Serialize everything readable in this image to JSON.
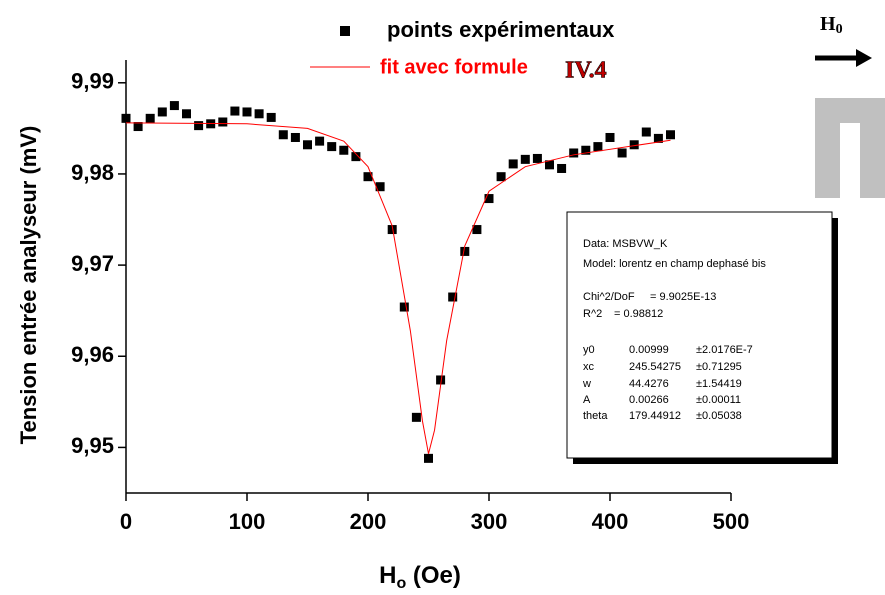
{
  "chart_data": {
    "type": "scatter",
    "ylabel": "Tension entrée analyseur (mV)",
    "xlabel": [
      "H",
      "o",
      " (Oe)"
    ],
    "xlim": [
      0,
      500
    ],
    "xticks": [
      0,
      100,
      200,
      300,
      400,
      500
    ],
    "ylim": [
      9.945,
      9.9925
    ],
    "yticks": [
      {
        "value": 9.95,
        "label": "9,95"
      },
      {
        "value": 9.96,
        "label": "9,96"
      },
      {
        "value": 9.97,
        "label": "9,97"
      },
      {
        "value": 9.98,
        "label": "9,98"
      },
      {
        "value": 9.99,
        "label": "9,99"
      }
    ],
    "series": [
      {
        "name": "points expérimentaux",
        "color": "#000000",
        "marker": "square",
        "x": [
          0,
          10,
          20,
          30,
          40,
          50,
          60,
          70,
          80,
          90,
          100,
          110,
          120,
          130,
          140,
          150,
          160,
          170,
          180,
          190,
          200,
          210,
          220,
          230,
          240,
          250,
          260,
          270,
          280,
          290,
          300,
          310,
          320,
          330,
          340,
          350,
          360,
          370,
          380,
          390,
          400,
          410,
          420,
          430,
          440,
          450
        ],
        "values": [
          9.9861,
          9.9852,
          9.9861,
          9.9868,
          9.9875,
          9.9866,
          9.9853,
          9.9855,
          9.9857,
          9.9869,
          9.9868,
          9.9866,
          9.9862,
          9.9843,
          9.984,
          9.9832,
          9.9836,
          9.983,
          9.9826,
          9.9819,
          9.9797,
          9.9786,
          9.9739,
          9.9654,
          9.9533,
          9.9488,
          9.9574,
          9.9665,
          9.9715,
          9.9739,
          9.9773,
          9.9797,
          9.9811,
          9.9816,
          9.9817,
          9.981,
          9.9806,
          9.9823,
          9.9826,
          9.983,
          9.984,
          9.9823,
          9.9832,
          9.9846,
          9.9839,
          9.9843
        ]
      },
      {
        "name": "fit avec formule",
        "color": "#ff0000",
        "marker": "line",
        "x": [
          0,
          100,
          150,
          180,
          200,
          220,
          235,
          245,
          250,
          255,
          265,
          280,
          300,
          330,
          370,
          450
        ],
        "values": [
          9.9856,
          9.9855,
          9.985,
          9.9836,
          9.9808,
          9.9743,
          9.9628,
          9.9529,
          9.9493,
          9.9519,
          9.9617,
          9.9721,
          9.9781,
          9.9808,
          9.9821,
          9.9837
        ]
      }
    ],
    "annotations": [
      "IV.4"
    ],
    "field": [
      "H",
      "0"
    ],
    "fit_box": {
      "rows": [
        [
          "Data: MSBVW_K"
        ],
        [
          "Model: lorentz en champ dephasé bis"
        ],
        [
          "Chi^2/DoF",
          "= 9.9025E-13"
        ],
        [
          "R^2",
          "= 0.98812"
        ],
        [
          "y0",
          "0.00999",
          "±2.0176E-7"
        ],
        [
          "xc",
          "245.54275",
          "±0.71295"
        ],
        [
          "w",
          "44.4276",
          "±1.54419"
        ],
        [
          "A",
          "0.00266",
          "±0.00011"
        ],
        [
          "theta",
          "179.44912",
          "±0.05038"
        ]
      ]
    }
  }
}
